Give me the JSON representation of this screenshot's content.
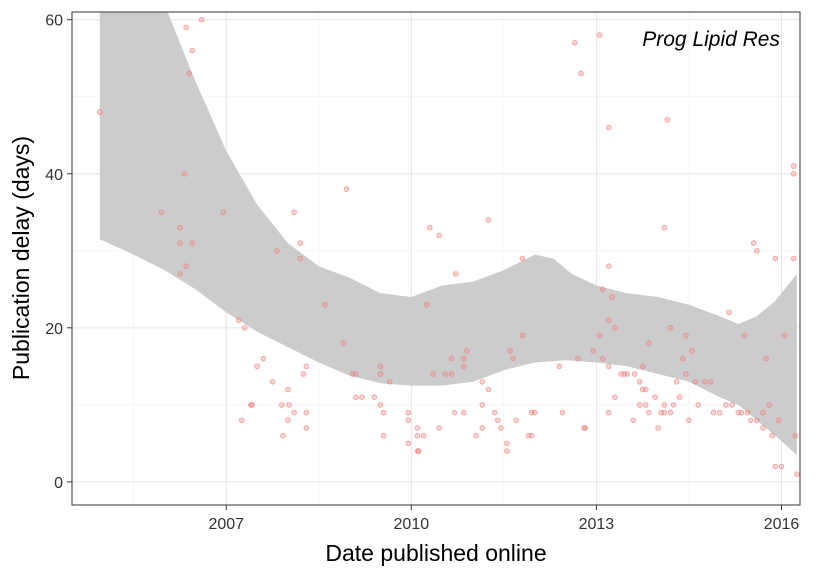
{
  "chart_data": {
    "type": "scatter",
    "annotation": "Prog Lipid Res",
    "xlabel": "Date published online",
    "ylabel": "Publication delay (days)",
    "x_ticks": [
      2007,
      2010,
      2013,
      2016
    ],
    "x_tick_labels": [
      "2007",
      "2010",
      "2013",
      "2016"
    ],
    "y_ticks": [
      0,
      20,
      40,
      60
    ],
    "y_tick_labels": [
      "0",
      "20",
      "40",
      "60"
    ],
    "xlim": [
      2004.5,
      2016.3
    ],
    "ylim": [
      -3,
      61
    ],
    "grid": true,
    "point_color": "#f08080",
    "band_color": "#cccccc",
    "points": [
      [
        2004.95,
        48
      ],
      [
        2005.95,
        35
      ],
      [
        2006.25,
        33
      ],
      [
        2006.25,
        31
      ],
      [
        2006.25,
        27
      ],
      [
        2006.32,
        40
      ],
      [
        2006.35,
        28
      ],
      [
        2006.45,
        31
      ],
      [
        2006.35,
        59
      ],
      [
        2006.4,
        53
      ],
      [
        2006.45,
        56
      ],
      [
        2006.6,
        60
      ],
      [
        2006.95,
        35
      ],
      [
        2007.2,
        21
      ],
      [
        2007.25,
        8
      ],
      [
        2007.3,
        20
      ],
      [
        2007.4,
        10
      ],
      [
        2007.42,
        10
      ],
      [
        2007.5,
        15
      ],
      [
        2007.6,
        16
      ],
      [
        2007.75,
        13
      ],
      [
        2007.82,
        30
      ],
      [
        2007.9,
        10
      ],
      [
        2007.92,
        6
      ],
      [
        2008.0,
        8
      ],
      [
        2008.02,
        10
      ],
      [
        2008.0,
        12
      ],
      [
        2008.1,
        35
      ],
      [
        2008.1,
        9
      ],
      [
        2008.2,
        31
      ],
      [
        2008.2,
        29
      ],
      [
        2008.25,
        14
      ],
      [
        2008.3,
        15
      ],
      [
        2008.3,
        9
      ],
      [
        2008.3,
        7
      ],
      [
        2008.6,
        23
      ],
      [
        2008.9,
        18
      ],
      [
        2008.95,
        38
      ],
      [
        2009.05,
        14
      ],
      [
        2009.1,
        14
      ],
      [
        2009.1,
        11
      ],
      [
        2009.2,
        11
      ],
      [
        2009.4,
        11
      ],
      [
        2009.5,
        15
      ],
      [
        2009.5,
        14
      ],
      [
        2009.5,
        10
      ],
      [
        2009.55,
        9
      ],
      [
        2009.55,
        6
      ],
      [
        2009.65,
        13
      ],
      [
        2009.95,
        9
      ],
      [
        2009.95,
        8
      ],
      [
        2009.95,
        5
      ],
      [
        2010.1,
        7
      ],
      [
        2010.1,
        6
      ],
      [
        2010.1,
        4
      ],
      [
        2010.12,
        4
      ],
      [
        2010.2,
        6
      ],
      [
        2010.25,
        23
      ],
      [
        2010.3,
        33
      ],
      [
        2010.35,
        14
      ],
      [
        2010.45,
        32
      ],
      [
        2010.45,
        7
      ],
      [
        2010.55,
        14
      ],
      [
        2010.65,
        14
      ],
      [
        2010.65,
        16
      ],
      [
        2010.7,
        9
      ],
      [
        2010.72,
        27
      ],
      [
        2010.85,
        9
      ],
      [
        2010.85,
        15
      ],
      [
        2010.85,
        16
      ],
      [
        2010.9,
        17
      ],
      [
        2011.05,
        6
      ],
      [
        2011.15,
        13
      ],
      [
        2011.15,
        10
      ],
      [
        2011.15,
        7
      ],
      [
        2011.25,
        34
      ],
      [
        2011.25,
        12
      ],
      [
        2011.35,
        9
      ],
      [
        2011.4,
        8
      ],
      [
        2011.45,
        7
      ],
      [
        2011.55,
        5
      ],
      [
        2011.55,
        4
      ],
      [
        2011.6,
        17
      ],
      [
        2011.65,
        16
      ],
      [
        2011.7,
        8
      ],
      [
        2011.8,
        29
      ],
      [
        2011.8,
        19
      ],
      [
        2011.9,
        6
      ],
      [
        2011.95,
        6
      ],
      [
        2011.95,
        9
      ],
      [
        2012.0,
        9
      ],
      [
        2012.4,
        15
      ],
      [
        2012.45,
        9
      ],
      [
        2012.65,
        57
      ],
      [
        2012.7,
        16
      ],
      [
        2012.75,
        53
      ],
      [
        2012.8,
        7
      ],
      [
        2012.82,
        7
      ],
      [
        2012.95,
        17
      ],
      [
        2013.05,
        58
      ],
      [
        2013.05,
        19
      ],
      [
        2013.1,
        16
      ],
      [
        2013.1,
        25
      ],
      [
        2013.2,
        46
      ],
      [
        2013.2,
        28
      ],
      [
        2013.2,
        21
      ],
      [
        2013.25,
        24
      ],
      [
        2013.2,
        15
      ],
      [
        2013.2,
        9
      ],
      [
        2013.3,
        20
      ],
      [
        2013.3,
        11
      ],
      [
        2013.4,
        14
      ],
      [
        2013.45,
        14
      ],
      [
        2013.5,
        14
      ],
      [
        2013.6,
        8
      ],
      [
        2013.62,
        14
      ],
      [
        2013.7,
        13
      ],
      [
        2013.7,
        10
      ],
      [
        2013.75,
        15
      ],
      [
        2013.75,
        12
      ],
      [
        2013.8,
        12
      ],
      [
        2013.8,
        10
      ],
      [
        2013.85,
        18
      ],
      [
        2013.85,
        9
      ],
      [
        2013.95,
        11
      ],
      [
        2014.0,
        7
      ],
      [
        2014.05,
        9
      ],
      [
        2014.1,
        33
      ],
      [
        2014.1,
        9
      ],
      [
        2014.1,
        10
      ],
      [
        2014.15,
        47
      ],
      [
        2014.2,
        20
      ],
      [
        2014.2,
        9
      ],
      [
        2014.25,
        10
      ],
      [
        2014.3,
        13
      ],
      [
        2014.35,
        11
      ],
      [
        2014.4,
        16
      ],
      [
        2014.45,
        19
      ],
      [
        2014.45,
        14
      ],
      [
        2014.5,
        8
      ],
      [
        2014.55,
        17
      ],
      [
        2014.6,
        13
      ],
      [
        2014.65,
        10
      ],
      [
        2014.75,
        13
      ],
      [
        2014.85,
        13
      ],
      [
        2014.9,
        9
      ],
      [
        2015.0,
        9
      ],
      [
        2015.1,
        10
      ],
      [
        2015.15,
        22
      ],
      [
        2015.2,
        10
      ],
      [
        2015.3,
        9
      ],
      [
        2015.35,
        9
      ],
      [
        2015.4,
        19
      ],
      [
        2015.45,
        9
      ],
      [
        2015.5,
        8
      ],
      [
        2015.55,
        31
      ],
      [
        2015.6,
        30
      ],
      [
        2015.6,
        8
      ],
      [
        2015.7,
        9
      ],
      [
        2015.7,
        7
      ],
      [
        2015.75,
        16
      ],
      [
        2015.8,
        10
      ],
      [
        2015.85,
        6
      ],
      [
        2015.9,
        29
      ],
      [
        2015.9,
        2
      ],
      [
        2015.95,
        8
      ],
      [
        2016.0,
        2
      ],
      [
        2016.05,
        19
      ],
      [
        2016.2,
        41
      ],
      [
        2016.2,
        40
      ],
      [
        2016.2,
        29
      ],
      [
        2016.22,
        6
      ],
      [
        2016.25,
        1
      ]
    ],
    "band_upper": [
      [
        2004.95,
        80
      ],
      [
        2005.5,
        72
      ],
      [
        2006.0,
        62
      ],
      [
        2006.5,
        52
      ],
      [
        2007.0,
        43
      ],
      [
        2007.5,
        36
      ],
      [
        2008.0,
        31
      ],
      [
        2008.5,
        28
      ],
      [
        2009.0,
        26.5
      ],
      [
        2009.5,
        24.5
      ],
      [
        2010.0,
        24.0
      ],
      [
        2010.5,
        25.5
      ],
      [
        2011.0,
        26.0
      ],
      [
        2011.5,
        27.5
      ],
      [
        2012.0,
        29.5
      ],
      [
        2012.3,
        29.0
      ],
      [
        2012.6,
        27.0
      ],
      [
        2013.0,
        25.5
      ],
      [
        2013.5,
        24.5
      ],
      [
        2014.0,
        24.0
      ],
      [
        2014.5,
        23.0
      ],
      [
        2015.0,
        21.5
      ],
      [
        2015.3,
        20.5
      ],
      [
        2015.6,
        21.5
      ],
      [
        2015.9,
        23.5
      ],
      [
        2016.25,
        27.0
      ]
    ],
    "band_lower": [
      [
        2004.95,
        31.5
      ],
      [
        2005.5,
        29.5
      ],
      [
        2006.0,
        27.5
      ],
      [
        2006.5,
        25.0
      ],
      [
        2007.0,
        22.0
      ],
      [
        2007.5,
        19.5
      ],
      [
        2008.0,
        17.5
      ],
      [
        2008.5,
        15.5
      ],
      [
        2009.0,
        13.8
      ],
      [
        2009.5,
        12.8
      ],
      [
        2010.0,
        12.5
      ],
      [
        2010.5,
        12.5
      ],
      [
        2011.0,
        13.0
      ],
      [
        2011.5,
        14.5
      ],
      [
        2012.0,
        15.5
      ],
      [
        2012.5,
        15.8
      ],
      [
        2013.0,
        15.5
      ],
      [
        2013.5,
        15.0
      ],
      [
        2014.0,
        14.0
      ],
      [
        2014.5,
        13.0
      ],
      [
        2015.0,
        11.0
      ],
      [
        2015.3,
        10.0
      ],
      [
        2015.6,
        8.0
      ],
      [
        2015.9,
        6.0
      ],
      [
        2016.25,
        3.5
      ]
    ]
  }
}
